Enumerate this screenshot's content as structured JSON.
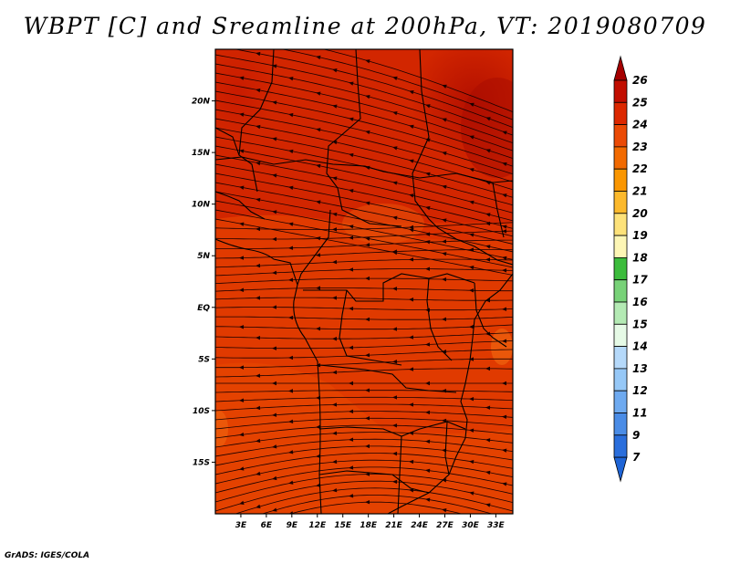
{
  "title": "WBPT [C] and Sreamline at 200hPa, VT: 2019080709",
  "credit": "GrADS: IGES/COLA",
  "map": {
    "lon_range": [
      0,
      35
    ],
    "lat_range": [
      -20,
      25
    ],
    "lon_ticks": [
      {
        "value": 3,
        "label": "3E"
      },
      {
        "value": 6,
        "label": "6E"
      },
      {
        "value": 9,
        "label": "9E"
      },
      {
        "value": 12,
        "label": "12E"
      },
      {
        "value": 15,
        "label": "15E"
      },
      {
        "value": 18,
        "label": "18E"
      },
      {
        "value": 21,
        "label": "21E"
      },
      {
        "value": 24,
        "label": "24E"
      },
      {
        "value": 27,
        "label": "27E"
      },
      {
        "value": 30,
        "label": "30E"
      },
      {
        "value": 33,
        "label": "33E"
      }
    ],
    "lat_ticks": [
      {
        "value": 20,
        "label": "20N"
      },
      {
        "value": 15,
        "label": "15N"
      },
      {
        "value": 10,
        "label": "10N"
      },
      {
        "value": 5,
        "label": "5N"
      },
      {
        "value": 0,
        "label": "EQ"
      },
      {
        "value": -5,
        "label": "5S"
      },
      {
        "value": -10,
        "label": "10S"
      },
      {
        "value": -15,
        "label": "15S"
      }
    ]
  },
  "colorbar": {
    "levels": [
      {
        "label": "26",
        "color": "#a50000"
      },
      {
        "label": "25",
        "color": "#c20e00"
      },
      {
        "label": "24",
        "color": "#dc2800"
      },
      {
        "label": "23",
        "color": "#eb4a05"
      },
      {
        "label": "22",
        "color": "#f26a00"
      },
      {
        "label": "21",
        "color": "#fa9600"
      },
      {
        "label": "20",
        "color": "#fcb92c"
      },
      {
        "label": "19",
        "color": "#fde27a"
      },
      {
        "label": "18",
        "color": "#fdf6b5"
      },
      {
        "label": "17",
        "color": "#3cbc3c"
      },
      {
        "label": "16",
        "color": "#78d278"
      },
      {
        "label": "15",
        "color": "#b4eab4"
      },
      {
        "label": "14",
        "color": "#e6fae6"
      },
      {
        "label": "13",
        "color": "#b5d9fa"
      },
      {
        "label": "12",
        "color": "#96c8f7"
      },
      {
        "label": "11",
        "color": "#6eaaf0"
      },
      {
        "label": "9",
        "color": "#4a8ce6"
      },
      {
        "label": "7",
        "color": "#2a6edc"
      }
    ],
    "bottom_color": "#1e64d6"
  }
}
